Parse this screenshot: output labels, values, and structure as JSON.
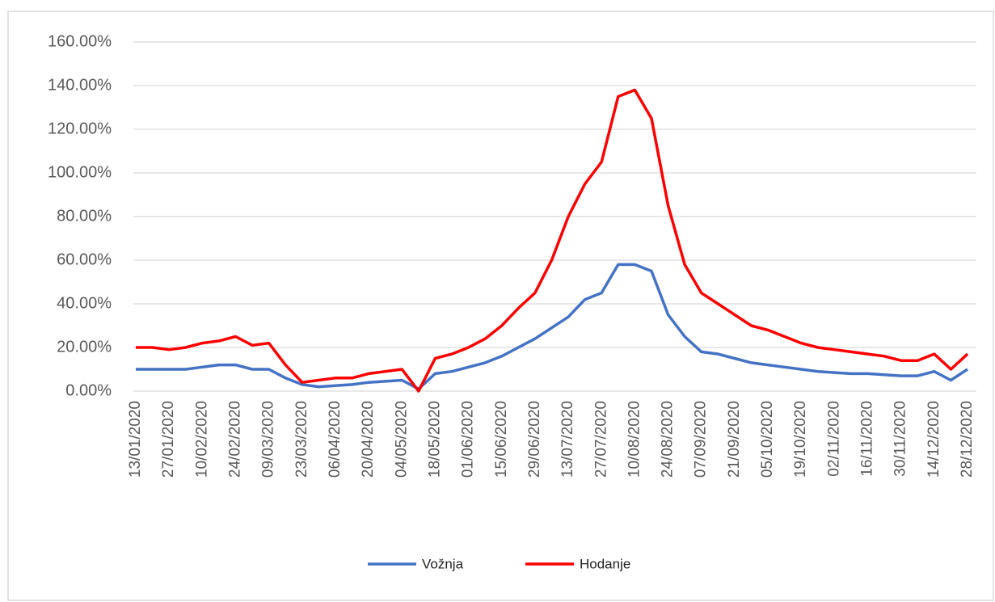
{
  "chart_data": {
    "type": "line",
    "categories": [
      "13/01/2020",
      null,
      "27/01/2020",
      null,
      "10/02/2020",
      null,
      "24/02/2020",
      null,
      "09/03/2020",
      null,
      "23/03/2020",
      null,
      "06/04/2020",
      null,
      "20/04/2020",
      null,
      "04/05/2020",
      null,
      "18/05/2020",
      null,
      "01/06/2020",
      null,
      "15/06/2020",
      null,
      "29/06/2020",
      null,
      "13/07/2020",
      null,
      "27/07/2020",
      null,
      "10/08/2020",
      null,
      "24/08/2020",
      null,
      "07/09/2020",
      null,
      "21/09/2020",
      null,
      "05/10/2020",
      null,
      "19/10/2020",
      null,
      "02/11/2020",
      null,
      "16/11/2020",
      null,
      "30/11/2020",
      null,
      "14/12/2020",
      null,
      "28/12/2020"
    ],
    "series": [
      {
        "name": "Vožnja",
        "color": "#4472c4",
        "values": [
          10,
          10,
          10,
          10,
          11,
          12,
          12,
          10,
          10,
          6,
          3,
          2,
          2.5,
          3,
          4,
          4.5,
          5,
          1,
          8,
          9,
          11,
          13,
          16,
          20,
          24,
          29,
          34,
          42,
          45,
          58,
          58,
          55,
          35,
          25,
          18,
          17,
          15,
          13,
          12,
          11,
          10,
          9,
          8.5,
          8,
          8,
          7.5,
          7,
          7,
          9,
          5,
          10
        ]
      },
      {
        "name": "Hodanje",
        "color": "#ff0000",
        "values": [
          20,
          20,
          19,
          20,
          22,
          23,
          25,
          21,
          22,
          12,
          4,
          5,
          6,
          6,
          8,
          9,
          10,
          0,
          15,
          17,
          20,
          24,
          30,
          38,
          45,
          60,
          80,
          95,
          105,
          135,
          138,
          125,
          85,
          58,
          45,
          40,
          35,
          30,
          28,
          25,
          22,
          20,
          19,
          18,
          17,
          16,
          14,
          14,
          17,
          10,
          17
        ]
      }
    ],
    "ylim": [
      0,
      160
    ],
    "yticks": [
      {
        "value": 0,
        "label": "0.00%"
      },
      {
        "value": 20,
        "label": "20.00%"
      },
      {
        "value": 40,
        "label": "40.00%"
      },
      {
        "value": 60,
        "label": "60.00%"
      },
      {
        "value": 80,
        "label": "80.00%"
      },
      {
        "value": 100,
        "label": "100.00%"
      },
      {
        "value": 120,
        "label": "120.00%"
      },
      {
        "value": 140,
        "label": "140.00%"
      },
      {
        "value": 160,
        "label": "160.00%"
      }
    ],
    "grid": true
  }
}
